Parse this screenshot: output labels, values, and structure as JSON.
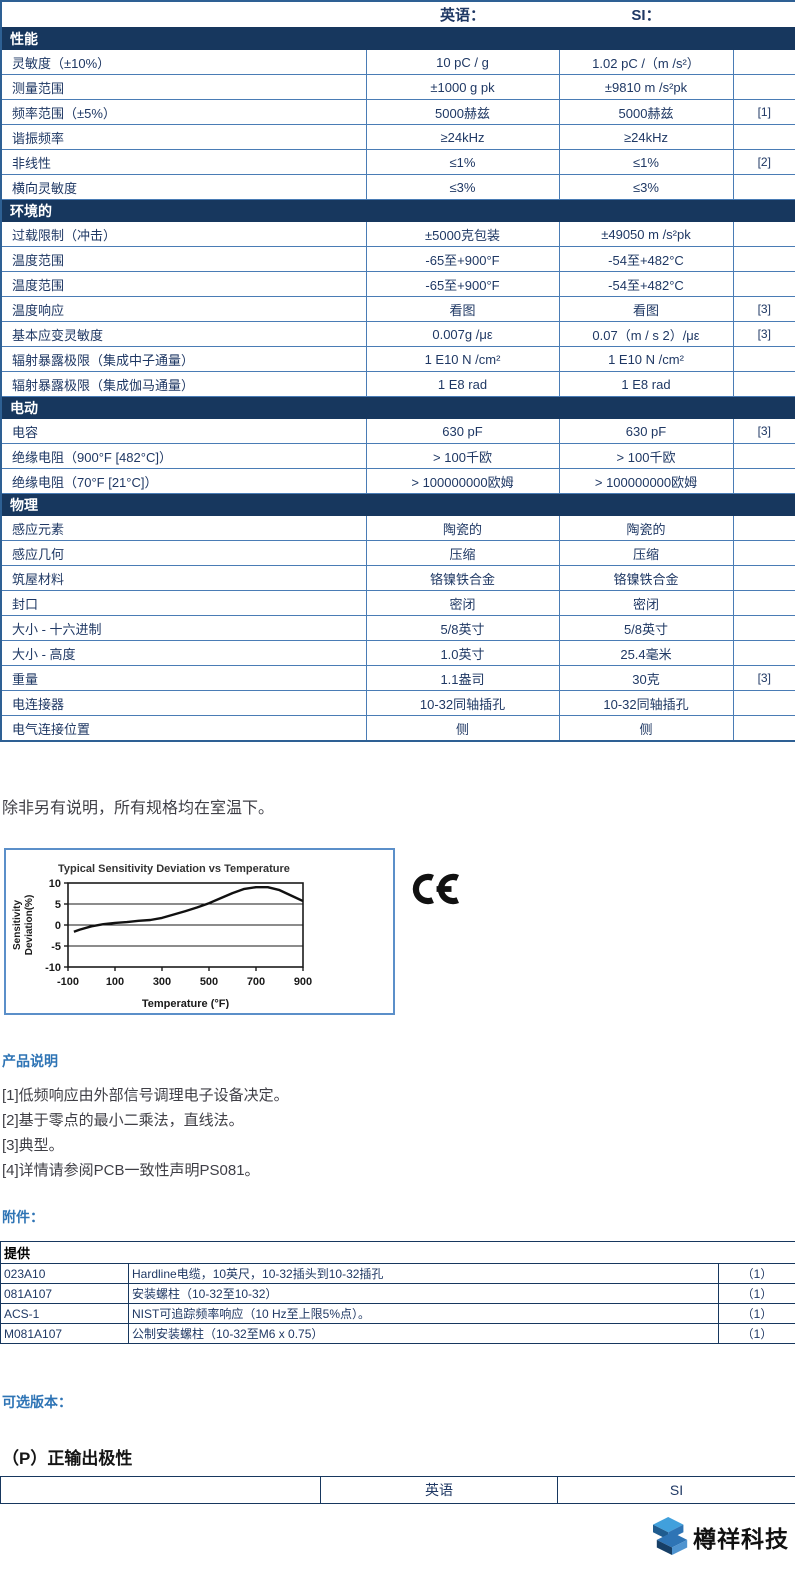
{
  "header": {
    "en_label": "英语：",
    "si_label": "SI："
  },
  "spec_table": {
    "sections": [
      {
        "title": "性能",
        "rows": [
          {
            "label": "灵敏度（±10%）",
            "en": "10 pC / g",
            "si": "1.02 pC /（m /s²）",
            "note": ""
          },
          {
            "label": "测量范围",
            "en": "±1000 g pk",
            "si": "±9810 m /s²pk",
            "note": ""
          },
          {
            "label": "频率范围（±5%）",
            "en": "5000赫兹",
            "si": "5000赫兹",
            "note": "[1]"
          },
          {
            "label": "谐振频率",
            "en": "≥24kHz",
            "si": "≥24kHz",
            "note": ""
          },
          {
            "label": "非线性",
            "en": "≤1%",
            "si": "≤1%",
            "note": "[2]"
          },
          {
            "label": "横向灵敏度",
            "en": "≤3%",
            "si": "≤3%",
            "note": ""
          }
        ]
      },
      {
        "title": "环境的",
        "rows": [
          {
            "label": "过载限制（冲击）",
            "en": "±5000克包装",
            "si": "±49050 m /s²pk",
            "note": ""
          },
          {
            "label": "温度范围",
            "en": "-65至+900°F",
            "si": "-54至+482°C",
            "note": ""
          },
          {
            "label": "温度范围",
            "en": "-65至+900°F",
            "si": "-54至+482°C",
            "note": ""
          },
          {
            "label": "温度响应",
            "en": "看图",
            "si": "看图",
            "note": "[3]"
          },
          {
            "label": "基本应变灵敏度",
            "en": "0.007g /με",
            "si": "0.07（m / s 2）/με",
            "note": "[3]"
          },
          {
            "label": "辐射暴露极限（集成中子通量）",
            "en": "1 E10 N /cm²",
            "si": "1 E10 N /cm²",
            "note": ""
          },
          {
            "label": "辐射暴露极限（集成伽马通量）",
            "en": "1 E8 rad",
            "si": "1 E8 rad",
            "note": ""
          }
        ]
      },
      {
        "title": "电动",
        "rows": [
          {
            "label": "电容",
            "en": "630 pF",
            "si": "630 pF",
            "note": "[3]"
          },
          {
            "label": "绝缘电阻（900°F [482°C]）",
            "en": "> 100千欧",
            "si": "> 100千欧",
            "note": ""
          },
          {
            "label": "绝缘电阻（70°F [21°C]）",
            "en": "> 100000000欧姆",
            "si": "> 100000000欧姆",
            "note": ""
          }
        ]
      },
      {
        "title": "物理",
        "rows": [
          {
            "label": "感应元素",
            "en": "陶瓷的",
            "si": "陶瓷的",
            "note": ""
          },
          {
            "label": "感应几何",
            "en": "压缩",
            "si": "压缩",
            "note": ""
          },
          {
            "label": "筑屋材料",
            "en": "铬镍铁合金",
            "si": "铬镍铁合金",
            "note": ""
          },
          {
            "label": "封口",
            "en": "密闭",
            "si": "密闭",
            "note": ""
          },
          {
            "label": "大小 - 十六进制",
            "en": "5/8英寸",
            "si": "5/8英寸",
            "note": ""
          },
          {
            "label": "大小 - 高度",
            "en": "1.0英寸",
            "si": "25.4毫米",
            "note": ""
          },
          {
            "label": "重量",
            "en": "1.1盎司",
            "si": "30克",
            "note": "[3]"
          },
          {
            "label": "电连接器",
            "en": "10-32同轴插孔",
            "si": "10-32同轴插孔",
            "note": ""
          },
          {
            "label": "电气连接位置",
            "en": "侧",
            "si": "侧",
            "note": ""
          }
        ]
      }
    ]
  },
  "room_temp_note": "除非另有说明，所有规格均在室温下。",
  "chart_data": {
    "type": "line",
    "title": "Typical Sensitivity Deviation vs Temperature",
    "xlabel": "Temperature (°F)",
    "ylabel": "Sensitivity Deviation(%)",
    "ylabel_lines": [
      "Sensitivity",
      "Deviation(%)"
    ],
    "xlim": [
      -100,
      900
    ],
    "ylim": [
      -10,
      10
    ],
    "xticks": [
      -100,
      100,
      300,
      500,
      700,
      900
    ],
    "yticks": [
      10,
      5,
      0,
      -5,
      -10
    ],
    "grid": true,
    "series": [
      {
        "name": "sensitivity-deviation",
        "x": [
          -75,
          -50,
          0,
          50,
          100,
          150,
          200,
          250,
          300,
          350,
          400,
          450,
          500,
          550,
          600,
          650,
          700,
          750,
          800,
          850,
          900
        ],
        "y": [
          -1.6,
          -1.1,
          -0.3,
          0.2,
          0.5,
          0.7,
          1.0,
          1.2,
          1.7,
          2.5,
          3.3,
          4.2,
          5.2,
          6.4,
          7.6,
          8.6,
          9.0,
          9.0,
          8.3,
          7.0,
          5.7
        ]
      }
    ]
  },
  "ce_mark": "CE",
  "product_notes": {
    "heading": "产品说明",
    "items": [
      "[1]低频响应由外部信号调理电子设备决定。",
      "[2]基于零点的最小二乘法，直线法。",
      "[3]典型。",
      "[4]详情请参阅PCB一致性声明PS081。"
    ]
  },
  "accessories": {
    "heading": "附件：",
    "table_header": "提供",
    "rows": [
      {
        "part": "023A10",
        "desc": "Hardline电缆，10英尺，10-32插头到10-32插孔",
        "qty": "（1）"
      },
      {
        "part": "081A107",
        "desc": "安装螺柱（10-32至10-32）",
        "qty": "（1）"
      },
      {
        "part": "ACS-1",
        "desc": "NIST可追踪频率响应（10 Hz至上限5%点）。",
        "qty": "（1）"
      },
      {
        "part": "M081A107",
        "desc": "公制安装螺柱（10-32至M6 x 0.75）",
        "qty": "（1）"
      }
    ]
  },
  "optional_versions": {
    "heading": "可选版本：",
    "version_title": "（P）正输出极性",
    "columns": [
      "",
      "英语",
      "SI"
    ]
  },
  "footer": {
    "brand": "樽祥科技"
  },
  "colors": {
    "section_bg": "#17375e",
    "table_text": "#1f3864",
    "inner_border": "#4a7cb5",
    "outer_border": "#2e6094",
    "heading_blue": "#2e74b5",
    "dark_border": "#17375e",
    "brand_blue": "#2e74b5"
  }
}
